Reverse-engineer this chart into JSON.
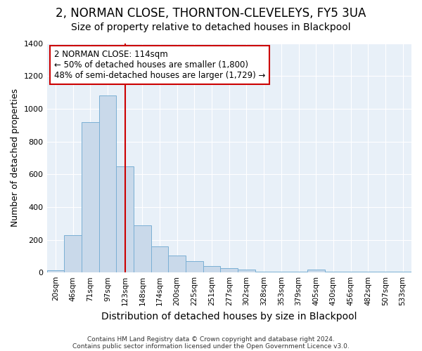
{
  "title": "2, NORMAN CLOSE, THORNTON-CLEVELEYS, FY5 3UA",
  "subtitle": "Size of property relative to detached houses in Blackpool",
  "xlabel": "Distribution of detached houses by size in Blackpool",
  "ylabel": "Number of detached properties",
  "categories": [
    "20sqm",
    "46sqm",
    "71sqm",
    "97sqm",
    "123sqm",
    "148sqm",
    "174sqm",
    "200sqm",
    "225sqm",
    "251sqm",
    "277sqm",
    "302sqm",
    "328sqm",
    "353sqm",
    "379sqm",
    "405sqm",
    "430sqm",
    "456sqm",
    "482sqm",
    "507sqm",
    "533sqm"
  ],
  "values": [
    15,
    230,
    920,
    1080,
    650,
    290,
    160,
    105,
    70,
    40,
    25,
    20,
    5,
    5,
    5,
    20,
    5,
    5,
    5,
    5,
    5
  ],
  "bar_color": "#c9d9ea",
  "bar_edge_color": "#7aafd4",
  "vline_color": "#cc0000",
  "vline_x": 4.0,
  "annotation_box_text": "2 NORMAN CLOSE: 114sqm\n← 50% of detached houses are smaller (1,800)\n48% of semi-detached houses are larger (1,729) →",
  "annotation_box_color": "#ffffff",
  "annotation_box_edge_color": "#cc0000",
  "ylim": [
    0,
    1400
  ],
  "yticks": [
    0,
    200,
    400,
    600,
    800,
    1000,
    1200,
    1400
  ],
  "bg_color": "#ffffff",
  "plot_bg_color": "#e8f0f8",
  "footer1": "Contains HM Land Registry data © Crown copyright and database right 2024.",
  "footer2": "Contains public sector information licensed under the Open Government Licence v3.0.",
  "title_fontsize": 12,
  "subtitle_fontsize": 10,
  "xlabel_fontsize": 10,
  "ylabel_fontsize": 9
}
